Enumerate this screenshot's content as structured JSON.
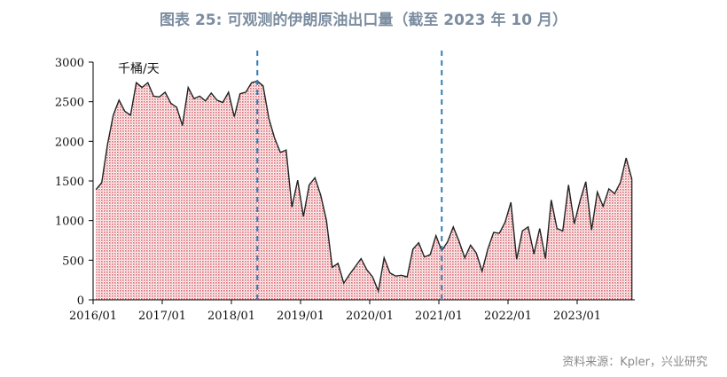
{
  "title": "图表 25: 可观测的伊朗原油出口量（截至 2023 年 10 月）",
  "source": "资料来源：Kpler，兴业研究",
  "chart_data": {
    "type": "area",
    "unit_label": "千桶/天",
    "ylim": [
      0,
      3000
    ],
    "yticks": [
      0,
      500,
      1000,
      1500,
      2000,
      2500,
      3000
    ],
    "xticks": [
      "2016/01",
      "2017/01",
      "2018/01",
      "2019/01",
      "2020/01",
      "2021/01",
      "2022/01",
      "2023/01"
    ],
    "x_start": "2016/01",
    "x_end": "2023/10",
    "markers": [
      "2018/05",
      "2021/01"
    ],
    "colors": {
      "line": "#222222",
      "fill": "#d9646c",
      "marker": "#2e7fb8"
    },
    "series": [
      {
        "values": [
          1390,
          1480,
          1960,
          2330,
          2520,
          2380,
          2330,
          2740,
          2680,
          2740,
          2570,
          2560,
          2620,
          2480,
          2430,
          2200,
          2680,
          2540,
          2570,
          2510,
          2610,
          2520,
          2490,
          2620,
          2310,
          2600,
          2620,
          2740,
          2760,
          2700,
          2290,
          2040,
          1860,
          1890,
          1170,
          1510,
          1050,
          1450,
          1540,
          1320,
          1000,
          410,
          460,
          210,
          320,
          420,
          520,
          380,
          290,
          110,
          530,
          340,
          300,
          310,
          290,
          640,
          720,
          540,
          570,
          810,
          620,
          730,
          920,
          740,
          530,
          690,
          590,
          360,
          640,
          850,
          840,
          980,
          1230,
          510,
          870,
          920,
          580,
          900,
          520,
          1260,
          900,
          870,
          1450,
          960,
          1250,
          1490,
          880,
          1360,
          1180,
          1400,
          1340,
          1480,
          1790,
          1520
        ]
      }
    ]
  }
}
